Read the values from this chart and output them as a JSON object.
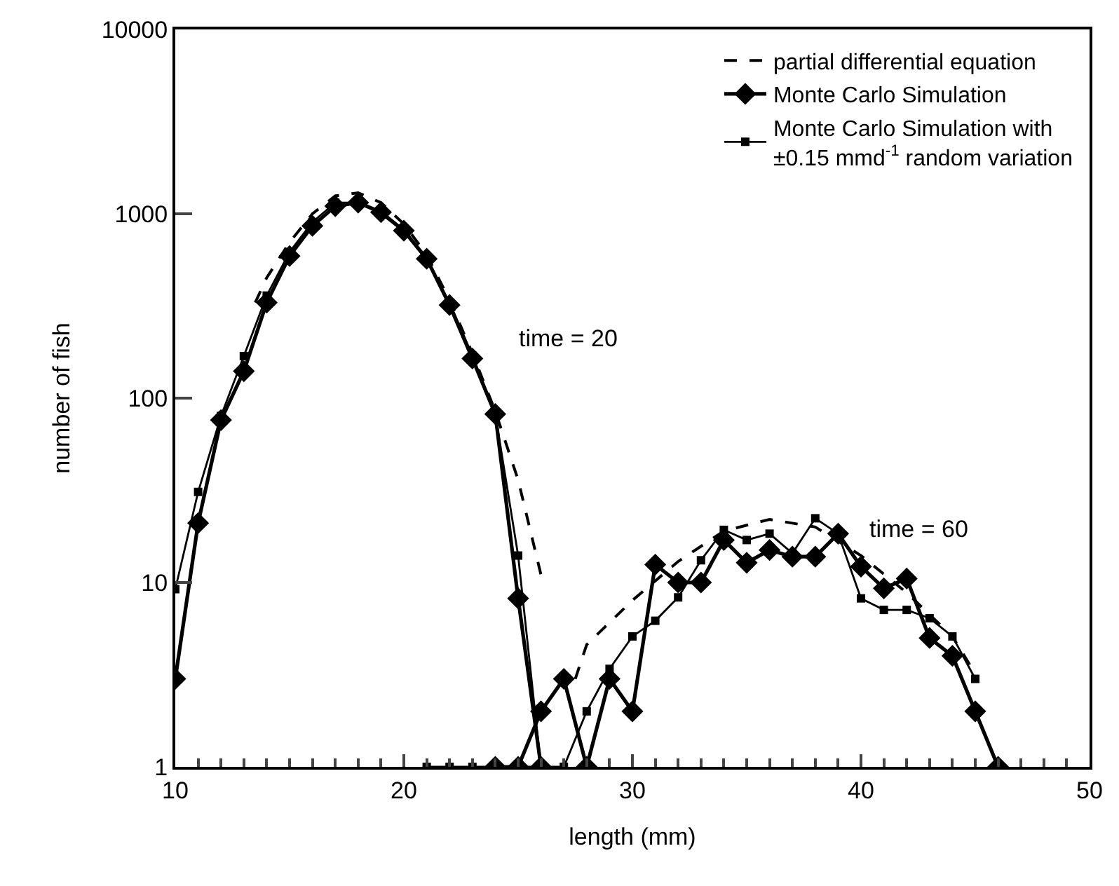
{
  "chart_data": {
    "type": "line",
    "xlabel": "length (mm)",
    "ylabel": "number of fish",
    "log": "y",
    "grid": false,
    "legend": "top right",
    "xlim": [
      10,
      50
    ],
    "xticks": [
      10,
      20,
      30,
      40,
      50
    ],
    "ylim": [
      1,
      10000
    ],
    "yticks": [
      1,
      10,
      100,
      1000,
      10000
    ],
    "annotations": [
      "time = 20",
      "time = 60"
    ],
    "series": [
      {
        "name": "partial differential equation",
        "color": "#000000",
        "marker": "none",
        "line_style": "dashed",
        "x": [
          13.5,
          14,
          15,
          16,
          17,
          18,
          19,
          20,
          21,
          22,
          23,
          24,
          25,
          26
        ],
        "values": [
          330,
          450,
          700,
          1000,
          1250,
          1300,
          1150,
          880,
          600,
          340,
          175,
          85,
          36,
          11
        ]
      },
      {
        "name": "Monte Carlo Simulation",
        "color": "#000000",
        "marker": "diamond",
        "line_style": "solid",
        "x": [
          10,
          11,
          12,
          13,
          14,
          15,
          16,
          17,
          18,
          19,
          20,
          21,
          22,
          23,
          24,
          25,
          26
        ],
        "values": [
          3,
          21,
          76,
          140,
          330,
          590,
          860,
          1100,
          1150,
          1020,
          810,
          570,
          320,
          164,
          82,
          8.2,
          1
        ]
      },
      {
        "name": "Monte Carlo Simulation with\n±0.15 mmd$^{-1}$ random variation",
        "color": "#000000",
        "marker": "square",
        "line_style": "solid",
        "x": [
          10,
          11,
          12,
          13,
          14,
          15,
          16,
          17,
          18,
          19,
          20,
          21,
          22,
          23,
          24,
          25,
          26
        ],
        "values": [
          9.2,
          31,
          80,
          169,
          360,
          620,
          900,
          1150,
          1150,
          1000,
          800,
          560,
          330,
          170,
          82,
          14,
          1
        ]
      },
      {
        "color": "#000000",
        "marker": "none",
        "line_style": "dashed",
        "x": [
          27.5,
          28,
          30,
          32,
          34,
          36,
          38,
          40,
          42,
          44,
          45
        ],
        "values": [
          3.0,
          4.6,
          8,
          13,
          19,
          22,
          20,
          14,
          8.8,
          5.1,
          3.2
        ]
      },
      {
        "color": "#000000",
        "marker": "diamond",
        "line_style": "solid",
        "x": [
          24,
          25,
          26,
          27,
          28,
          29,
          30,
          31,
          32,
          33,
          34,
          35,
          36,
          37,
          38,
          39,
          40,
          41,
          42,
          43,
          44,
          45,
          46
        ],
        "values": [
          1,
          1,
          2,
          3,
          1,
          3,
          2,
          12.5,
          10,
          10,
          17,
          12.8,
          15,
          13.8,
          13.8,
          18.4,
          12.2,
          9.3,
          10.5,
          5,
          4,
          2,
          1
        ]
      },
      {
        "color": "#000000",
        "marker": "square",
        "line_style": "solid",
        "x": [
          21,
          22,
          23,
          24,
          25,
          26,
          27,
          28,
          29,
          30,
          31,
          32,
          33,
          34,
          35,
          36,
          37,
          38,
          39,
          40,
          41,
          42,
          43,
          44,
          45
        ],
        "values": [
          1,
          1,
          1,
          1,
          1,
          1,
          1,
          2,
          3.4,
          5.1,
          6.2,
          8.3,
          13.2,
          19.3,
          17,
          18.4,
          14.4,
          22.3,
          18.4,
          8.2,
          7.1,
          7.1,
          6.4,
          5.1,
          3
        ]
      }
    ]
  }
}
